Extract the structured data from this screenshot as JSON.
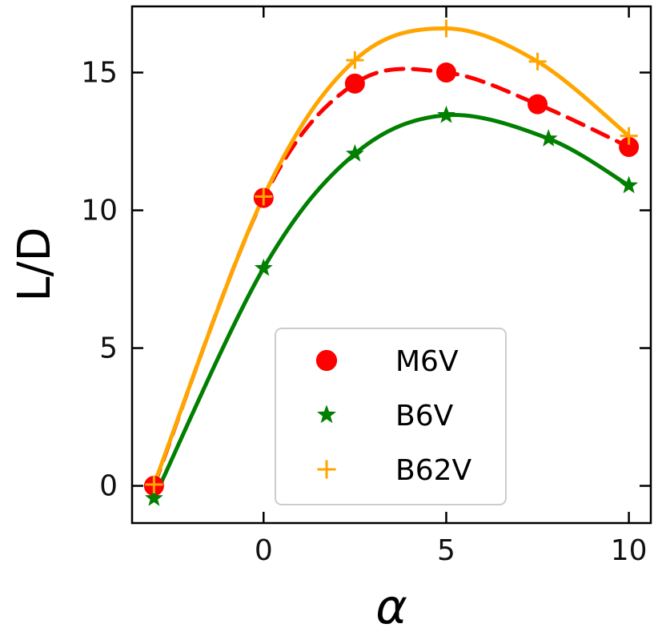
{
  "chart_data": {
    "type": "line",
    "title": "",
    "xlabel": "α",
    "ylabel": "L/D",
    "xlim": [
      -3.6,
      10.6
    ],
    "ylim": [
      -1.35,
      17.4
    ],
    "xticks": [
      0,
      5,
      10
    ],
    "yticks": [
      0,
      5,
      10,
      15
    ],
    "grid": false,
    "legend_position": "lower-center",
    "series": [
      {
        "name": "M6V",
        "color": "#ff0000",
        "marker": "circle",
        "line_style": "dashed",
        "x": [
          -3,
          0,
          2.5,
          5,
          7.5,
          10
        ],
        "y": [
          0,
          10.45,
          14.6,
          15.0,
          13.85,
          12.3
        ]
      },
      {
        "name": "B6V",
        "color": "#007f00",
        "marker": "star",
        "line_style": "solid",
        "x": [
          -3,
          0,
          2.5,
          5,
          7.8,
          10
        ],
        "y": [
          -0.45,
          7.9,
          12.05,
          13.45,
          12.6,
          10.9
        ]
      },
      {
        "name": "B62V",
        "color": "#ffa500",
        "marker": "plus",
        "line_style": "solid",
        "x": [
          -3,
          0,
          2.5,
          5,
          7.5,
          10
        ],
        "y": [
          0.05,
          10.5,
          15.45,
          16.6,
          15.4,
          12.7
        ]
      }
    ]
  }
}
